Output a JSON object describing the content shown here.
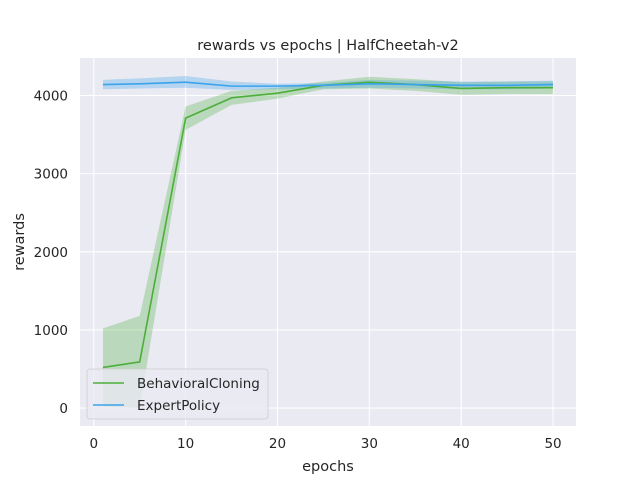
{
  "chart_data": {
    "type": "line",
    "title": "rewards vs epochs | HalfCheetah-v2",
    "xlabel": "epochs",
    "ylabel": "rewards",
    "xlim": [
      -1.5,
      52.5
    ],
    "ylim": [
      -230,
      4480
    ],
    "xticks": [
      0,
      10,
      20,
      30,
      40,
      50
    ],
    "yticks": [
      0,
      1000,
      2000,
      3000,
      4000
    ],
    "grid": true,
    "legend_position": "lower-left",
    "series": [
      {
        "name": "BehavioralCloning",
        "color": "#4caf3a",
        "x": [
          1,
          5,
          10,
          15,
          20,
          25,
          30,
          35,
          40,
          45,
          50
        ],
        "y": [
          520,
          590,
          3710,
          3970,
          4030,
          4130,
          4170,
          4140,
          4090,
          4100,
          4100
        ],
        "lower": [
          20,
          0,
          3560,
          3880,
          3960,
          4080,
          4090,
          4060,
          4010,
          4020,
          4020
        ],
        "upper": [
          1020,
          1180,
          3860,
          4060,
          4100,
          4180,
          4240,
          4210,
          4170,
          4180,
          4180
        ]
      },
      {
        "name": "ExpertPolicy",
        "color": "#3ba3ec",
        "x": [
          1,
          5,
          10,
          15,
          20,
          25,
          30,
          35,
          40,
          45,
          50
        ],
        "y": [
          4140,
          4150,
          4170,
          4120,
          4120,
          4130,
          4150,
          4140,
          4130,
          4130,
          4140
        ],
        "lower": [
          4080,
          4090,
          4100,
          4070,
          4080,
          4090,
          4100,
          4090,
          4080,
          4080,
          4090
        ],
        "upper": [
          4200,
          4220,
          4250,
          4180,
          4150,
          4160,
          4200,
          4190,
          4180,
          4180,
          4190
        ]
      }
    ]
  }
}
